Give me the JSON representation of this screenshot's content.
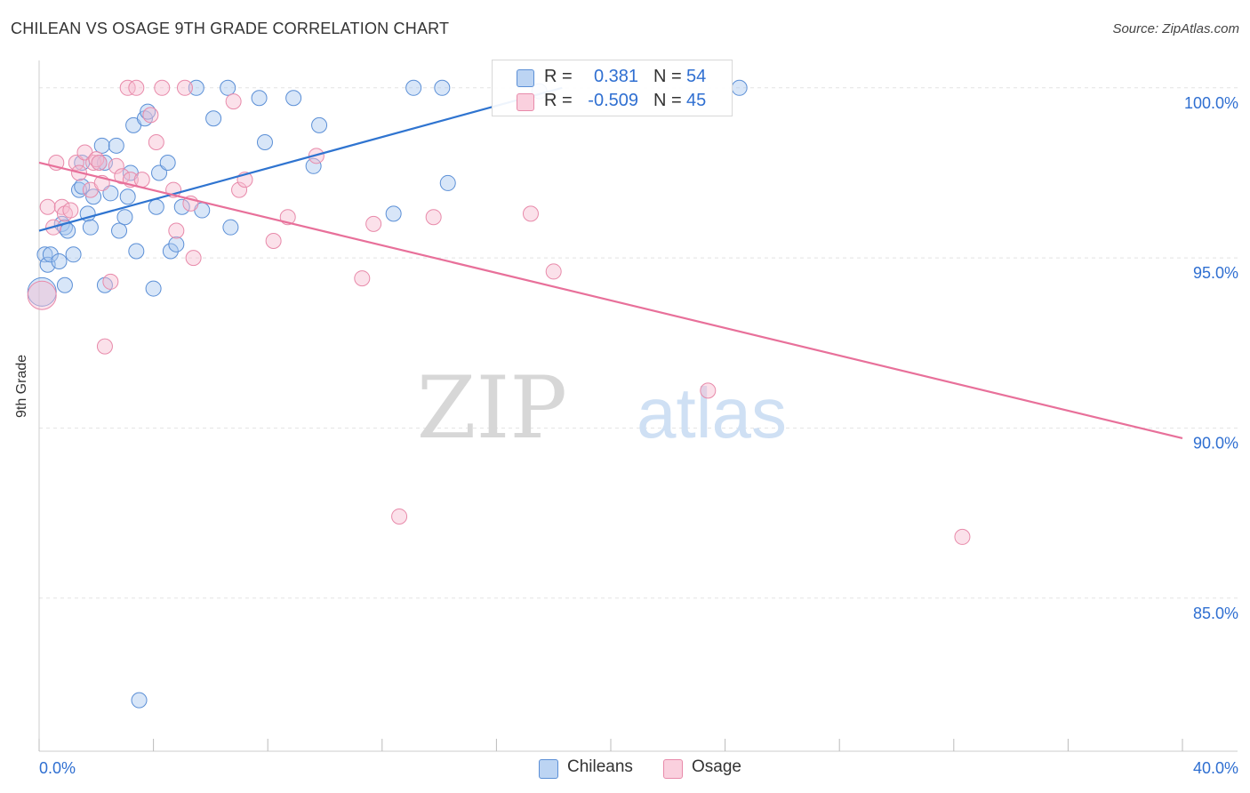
{
  "title": "CHILEAN VS OSAGE 9TH GRADE CORRELATION CHART",
  "source": "Source: ZipAtlas.com",
  "watermark": {
    "zip": "ZIP",
    "atlas": "atlas"
  },
  "legend": {
    "rows": [
      {
        "r_label": "R =",
        "r_value": "0.381",
        "n_label": "N =",
        "n_value": "54"
      },
      {
        "r_label": "R =",
        "r_value": "-0.509",
        "n_label": "N =",
        "n_value": "45"
      }
    ]
  },
  "bottom_legend": {
    "items": [
      "Chileans",
      "Osage"
    ]
  },
  "colors": {
    "blue_fill": "#a8c8f0",
    "blue_stroke": "#5b8fd6",
    "blue_line": "#2f74d0",
    "pink_fill": "#f7bcd0",
    "pink_stroke": "#e88aaa",
    "pink_line": "#e8709a",
    "value_text": "#2f6fd1",
    "grid": "#e4e4e4"
  },
  "chart_data": {
    "type": "scatter",
    "xlabel": "",
    "ylabel": "9th Grade",
    "xlim": [
      0,
      40
    ],
    "ylim": [
      80.5,
      100.7
    ],
    "x_tick_labels": [
      {
        "value": 0,
        "label": "0.0%"
      },
      {
        "value": 40,
        "label": "40.0%"
      }
    ],
    "x_minor_ticks": [
      0,
      4,
      8,
      12,
      16,
      20,
      24,
      28,
      32,
      36,
      40
    ],
    "y_ticks": [
      {
        "value": 100,
        "label": "100.0%"
      },
      {
        "value": 95,
        "label": "95.0%"
      },
      {
        "value": 90,
        "label": "90.0%"
      },
      {
        "value": 85,
        "label": "85.0%"
      }
    ],
    "grid": true,
    "legend_position": "top-center",
    "series": [
      {
        "name": "Chileans",
        "color": "blue",
        "trend": {
          "x": [
            0,
            18.3
          ],
          "y": [
            95.8,
            100.0
          ]
        },
        "points": [
          [
            0.1,
            94.0
          ],
          [
            0.2,
            95.1
          ],
          [
            0.3,
            94.8
          ],
          [
            0.4,
            95.1
          ],
          [
            0.7,
            94.9
          ],
          [
            0.8,
            96.0
          ],
          [
            0.9,
            94.2
          ],
          [
            0.9,
            95.9
          ],
          [
            1.0,
            95.8
          ],
          [
            1.2,
            95.1
          ],
          [
            1.4,
            97.0
          ],
          [
            1.5,
            97.1
          ],
          [
            1.5,
            97.8
          ],
          [
            1.7,
            96.3
          ],
          [
            1.8,
            95.9
          ],
          [
            1.9,
            96.8
          ],
          [
            2.1,
            97.8
          ],
          [
            2.2,
            98.3
          ],
          [
            2.3,
            97.8
          ],
          [
            2.3,
            94.2
          ],
          [
            2.5,
            96.9
          ],
          [
            2.7,
            98.3
          ],
          [
            2.8,
            95.8
          ],
          [
            3.0,
            96.2
          ],
          [
            3.1,
            96.8
          ],
          [
            3.2,
            97.5
          ],
          [
            3.3,
            98.9
          ],
          [
            3.4,
            95.2
          ],
          [
            3.5,
            82.0
          ],
          [
            3.7,
            99.1
          ],
          [
            3.8,
            99.3
          ],
          [
            4.0,
            94.1
          ],
          [
            4.1,
            96.5
          ],
          [
            4.2,
            97.5
          ],
          [
            4.5,
            97.8
          ],
          [
            4.6,
            95.2
          ],
          [
            4.8,
            95.4
          ],
          [
            5.0,
            96.5
          ],
          [
            5.5,
            100.0
          ],
          [
            5.7,
            96.4
          ],
          [
            6.1,
            99.1
          ],
          [
            6.6,
            100.0
          ],
          [
            6.7,
            95.9
          ],
          [
            7.7,
            99.7
          ],
          [
            7.9,
            98.4
          ],
          [
            8.9,
            99.7
          ],
          [
            9.6,
            97.7
          ],
          [
            9.8,
            98.9
          ],
          [
            12.4,
            96.3
          ],
          [
            13.1,
            100.0
          ],
          [
            14.1,
            100.0
          ],
          [
            14.3,
            97.2
          ],
          [
            17.5,
            99.9
          ],
          [
            24.5,
            100.0
          ]
        ]
      },
      {
        "name": "Osage",
        "color": "pink",
        "trend": {
          "x": [
            0,
            40
          ],
          "y": [
            97.8,
            89.7
          ]
        },
        "points": [
          [
            0.1,
            93.9
          ],
          [
            0.3,
            96.5
          ],
          [
            0.5,
            95.9
          ],
          [
            0.6,
            97.8
          ],
          [
            0.8,
            96.5
          ],
          [
            0.9,
            96.3
          ],
          [
            1.1,
            96.4
          ],
          [
            1.3,
            97.8
          ],
          [
            1.4,
            97.5
          ],
          [
            1.6,
            98.1
          ],
          [
            1.8,
            97.0
          ],
          [
            1.9,
            97.8
          ],
          [
            2.0,
            97.9
          ],
          [
            2.1,
            97.8
          ],
          [
            2.2,
            97.2
          ],
          [
            2.3,
            92.4
          ],
          [
            2.5,
            94.3
          ],
          [
            2.7,
            97.7
          ],
          [
            2.9,
            97.4
          ],
          [
            3.1,
            100.0
          ],
          [
            3.2,
            97.3
          ],
          [
            3.4,
            100.0
          ],
          [
            3.6,
            97.3
          ],
          [
            3.9,
            99.2
          ],
          [
            4.1,
            98.4
          ],
          [
            4.3,
            100.0
          ],
          [
            4.7,
            97.0
          ],
          [
            4.8,
            95.8
          ],
          [
            5.1,
            100.0
          ],
          [
            5.3,
            96.6
          ],
          [
            5.4,
            95.0
          ],
          [
            6.8,
            99.6
          ],
          [
            7.0,
            97.0
          ],
          [
            7.2,
            97.3
          ],
          [
            8.2,
            95.5
          ],
          [
            8.7,
            96.2
          ],
          [
            9.7,
            98.0
          ],
          [
            11.3,
            94.4
          ],
          [
            11.7,
            96.0
          ],
          [
            12.6,
            87.4
          ],
          [
            13.8,
            96.2
          ],
          [
            17.2,
            96.3
          ],
          [
            18.0,
            94.6
          ],
          [
            23.4,
            91.1
          ],
          [
            32.3,
            86.8
          ]
        ]
      }
    ]
  }
}
